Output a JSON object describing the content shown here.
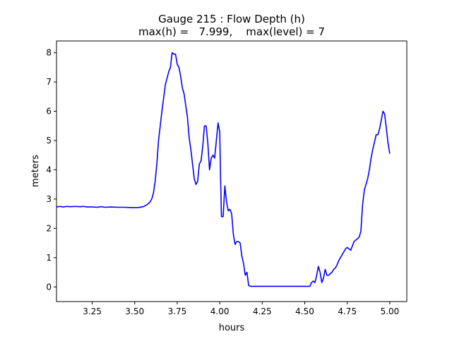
{
  "chart_data": {
    "type": "line",
    "title_line1": "Gauge 215 : Flow Depth (h)",
    "title_line2": "max(h) =   7.999,    max(level) = 7",
    "xlabel": "hours",
    "ylabel": "meters",
    "xlim": [
      3.04,
      5.1
    ],
    "ylim": [
      -0.5,
      8.4
    ],
    "xticks": [
      3.25,
      3.5,
      3.75,
      4.0,
      4.25,
      4.5,
      4.75,
      5.0
    ],
    "xtick_labels": [
      "3.25",
      "3.50",
      "3.75",
      "4.00",
      "4.25",
      "4.50",
      "4.75",
      "5.00"
    ],
    "yticks": [
      0,
      1,
      2,
      3,
      4,
      5,
      6,
      7,
      8
    ],
    "ytick_labels": [
      "0",
      "1",
      "2",
      "3",
      "4",
      "5",
      "6",
      "7",
      "8"
    ],
    "grid": false,
    "series": [
      {
        "color": "#0000ff",
        "x": [
          3.04,
          3.06,
          3.08,
          3.1,
          3.12,
          3.15,
          3.18,
          3.2,
          3.22,
          3.25,
          3.28,
          3.3,
          3.33,
          3.36,
          3.4,
          3.44,
          3.48,
          3.52,
          3.55,
          3.57,
          3.59,
          3.6,
          3.61,
          3.62,
          3.63,
          3.64,
          3.66,
          3.68,
          3.7,
          3.71,
          3.72,
          3.73,
          3.74,
          3.75,
          3.76,
          3.77,
          3.78,
          3.79,
          3.8,
          3.81,
          3.82,
          3.83,
          3.84,
          3.85,
          3.86,
          3.87,
          3.88,
          3.89,
          3.9,
          3.91,
          3.92,
          3.93,
          3.94,
          3.95,
          3.96,
          3.97,
          3.98,
          3.99,
          4.0,
          4.005,
          4.01,
          4.02,
          4.03,
          4.04,
          4.05,
          4.06,
          4.07,
          4.08,
          4.09,
          4.1,
          4.11,
          4.12,
          4.13,
          4.14,
          4.15,
          4.16,
          4.17,
          4.18,
          4.19,
          4.2,
          4.21,
          4.22,
          4.23,
          4.24,
          4.25,
          4.3,
          4.35,
          4.4,
          4.45,
          4.5,
          4.53,
          4.54,
          4.55,
          4.56,
          4.57,
          4.58,
          4.59,
          4.6,
          4.61,
          4.62,
          4.63,
          4.64,
          4.65,
          4.66,
          4.67,
          4.68,
          4.69,
          4.7,
          4.71,
          4.72,
          4.73,
          4.74,
          4.75,
          4.76,
          4.77,
          4.78,
          4.79,
          4.8,
          4.81,
          4.82,
          4.83,
          4.84,
          4.85,
          4.86,
          4.87,
          4.88,
          4.89,
          4.9,
          4.91,
          4.92,
          4.93,
          4.94,
          4.95,
          4.96,
          4.97,
          4.98,
          4.99,
          5.0
        ],
        "y": [
          2.73,
          2.75,
          2.73,
          2.75,
          2.74,
          2.75,
          2.74,
          2.75,
          2.73,
          2.73,
          2.72,
          2.74,
          2.72,
          2.73,
          2.72,
          2.72,
          2.71,
          2.71,
          2.74,
          2.8,
          2.9,
          3.0,
          3.2,
          3.6,
          4.2,
          5.0,
          6.0,
          6.9,
          7.35,
          7.5,
          8.0,
          7.95,
          7.95,
          7.6,
          7.5,
          7.2,
          6.8,
          6.6,
          6.2,
          5.8,
          5.1,
          4.7,
          4.2,
          3.7,
          3.5,
          3.6,
          4.2,
          4.3,
          4.8,
          5.5,
          5.5,
          4.9,
          4.0,
          4.4,
          4.5,
          4.4,
          5.0,
          5.6,
          5.3,
          3.7,
          2.4,
          2.4,
          3.45,
          2.9,
          2.6,
          2.65,
          2.5,
          1.8,
          1.45,
          1.55,
          1.55,
          1.5,
          1.05,
          0.8,
          0.4,
          0.5,
          0.05,
          0.02,
          0.02,
          0.02,
          0.02,
          0.02,
          0.02,
          0.02,
          0.02,
          0.02,
          0.02,
          0.02,
          0.02,
          0.02,
          0.02,
          0.15,
          0.2,
          0.15,
          0.4,
          0.7,
          0.5,
          0.15,
          0.3,
          0.6,
          0.4,
          0.4,
          0.45,
          0.5,
          0.6,
          0.65,
          0.75,
          0.9,
          1.0,
          1.1,
          1.2,
          1.3,
          1.35,
          1.3,
          1.25,
          1.4,
          1.55,
          1.6,
          1.65,
          1.7,
          1.9,
          2.8,
          3.3,
          3.5,
          3.7,
          4.0,
          4.4,
          4.7,
          4.95,
          5.2,
          5.2,
          5.4,
          5.7,
          6.0,
          5.9,
          5.4,
          4.9,
          4.55
        ]
      }
    ]
  }
}
